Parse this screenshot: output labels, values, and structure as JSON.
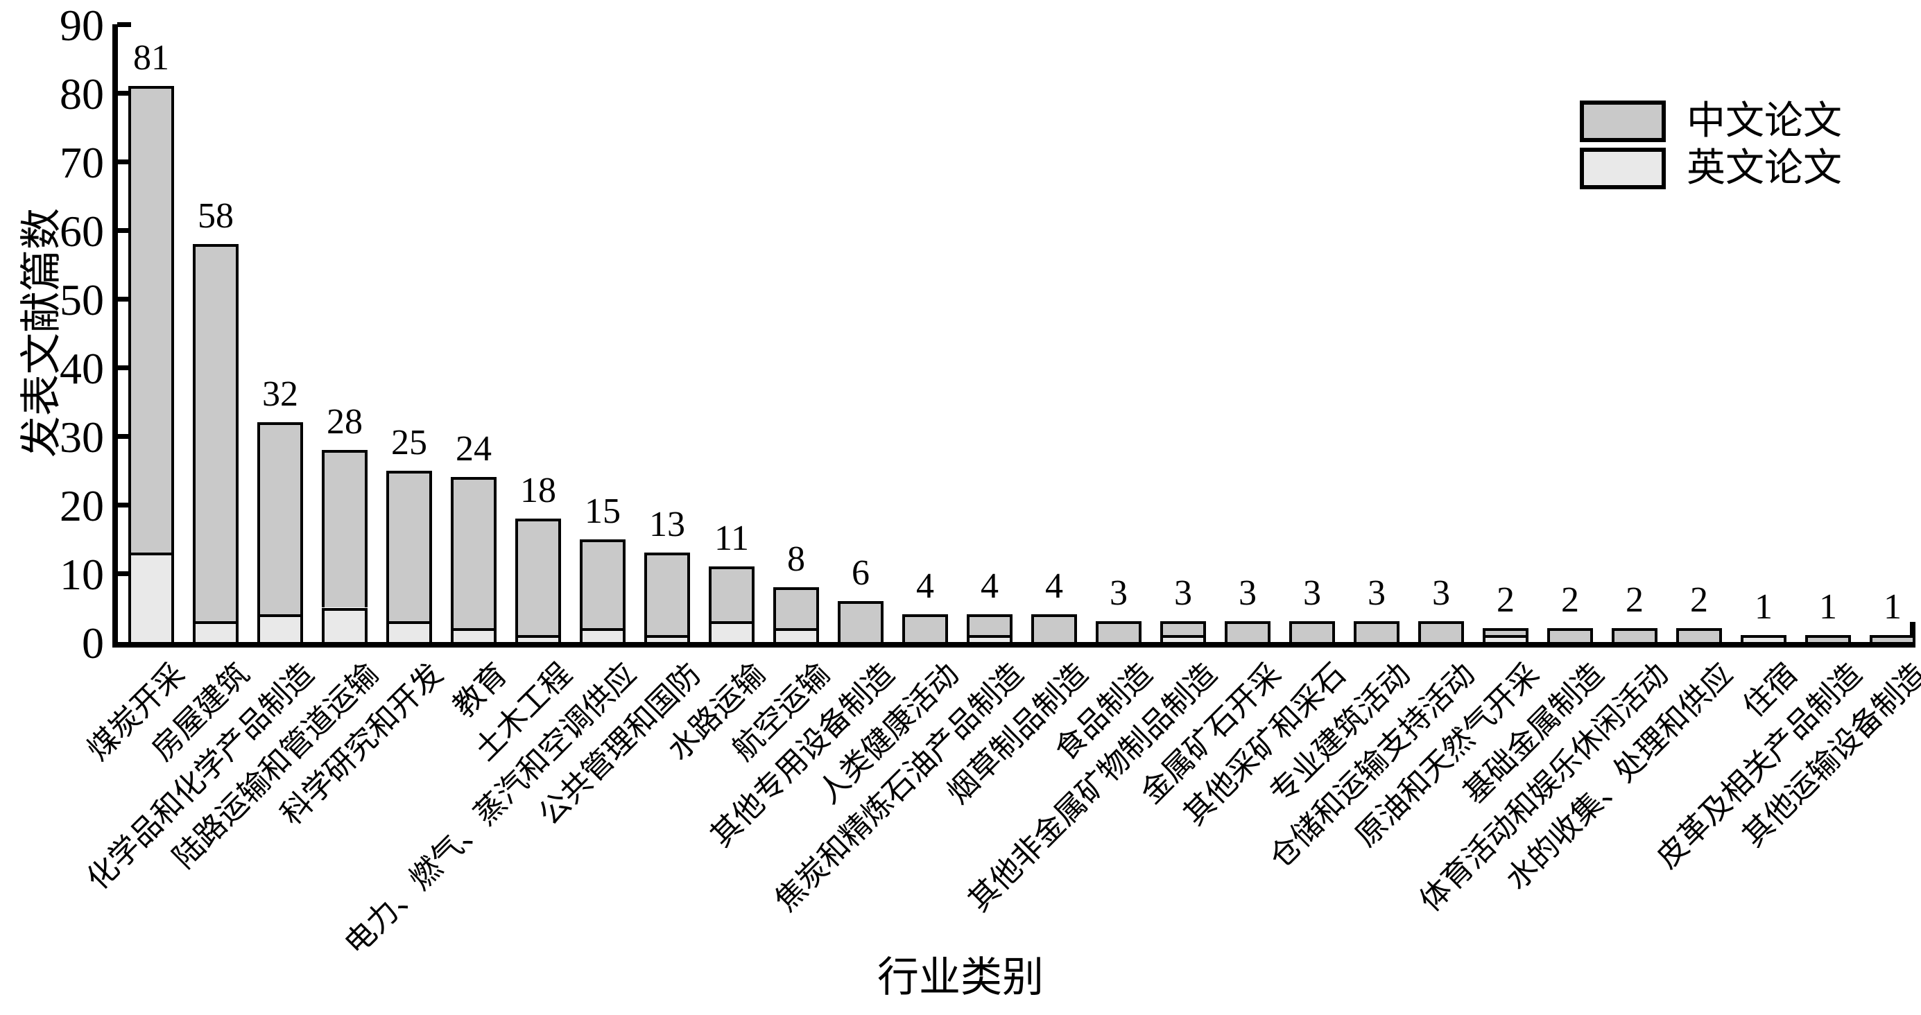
{
  "chart_data": {
    "type": "bar",
    "stacked": true,
    "title": "",
    "xlabel": "行业类别",
    "ylabel": "发表文献篇数",
    "ylim": [
      0,
      90
    ],
    "yticks": [
      0,
      10,
      20,
      30,
      40,
      50,
      60,
      70,
      80,
      90
    ],
    "grid": false,
    "legend_position": "top-right",
    "legend": [
      {
        "label": "中文论文",
        "swatch_color": "#c9c9c9"
      },
      {
        "label": "英文论文",
        "swatch_color": "#e9e9e9"
      }
    ],
    "categories": [
      "煤炭开采",
      "房屋建筑",
      "化学品和化学产品制造",
      "陆路运输和管道运输",
      "科学研究和开发",
      "教育",
      "土木工程",
      "电力、燃气、蒸汽和空调供应",
      "公共管理和国防",
      "水路运输",
      "航空运输",
      "其他专用设备制造",
      "人类健康活动",
      "焦炭和精炼石油产品制造",
      "烟草制品制造",
      "食品制造",
      "其他非金属矿物制品制造",
      "金属矿石开采",
      "其他采矿和采石",
      "专业建筑活动",
      "仓储和运输支持活动",
      "原油和天然气开采",
      "基础金属制造",
      "体育活动和娱乐休闲活动",
      "水的收集、处理和供应",
      "住宿",
      "皮革及相关产品制造",
      "其他运输设备制造"
    ],
    "series": [
      {
        "name": "英文论文",
        "color": "#e9e9e9",
        "stack_order": "bottom",
        "values": [
          13,
          3,
          4,
          5,
          3,
          2,
          1,
          2,
          1,
          3,
          2,
          0,
          0,
          1,
          0,
          0,
          1,
          0,
          0,
          0,
          0,
          1,
          0,
          0,
          0,
          1,
          0,
          0
        ]
      },
      {
        "name": "中文论文",
        "color": "#c9c9c9",
        "stack_order": "top",
        "values": [
          68,
          55,
          28,
          23,
          22,
          22,
          17,
          13,
          12,
          8,
          6,
          6,
          4,
          3,
          4,
          3,
          2,
          3,
          3,
          3,
          3,
          1,
          2,
          2,
          2,
          0,
          1,
          1
        ]
      }
    ],
    "totals": [
      81,
      58,
      32,
      28,
      25,
      24,
      18,
      15,
      13,
      11,
      8,
      6,
      4,
      4,
      4,
      3,
      3,
      3,
      3,
      3,
      3,
      2,
      2,
      2,
      2,
      1,
      1,
      1
    ],
    "bar_value_labels": [
      "81",
      "58",
      "32",
      "28",
      "25",
      "24",
      "18",
      "15",
      "13",
      "11",
      "8",
      "6",
      "4",
      "4",
      "4",
      "3",
      "3",
      "3",
      "3",
      "3",
      "3",
      "2",
      "2",
      "2",
      "2",
      "1",
      "1",
      "1"
    ]
  },
  "colors": {
    "axis": "#000000",
    "bar_border": "#000000",
    "chinese_fill": "#c9c9c9",
    "english_fill": "#e9e9e9",
    "background": "#ffffff"
  }
}
